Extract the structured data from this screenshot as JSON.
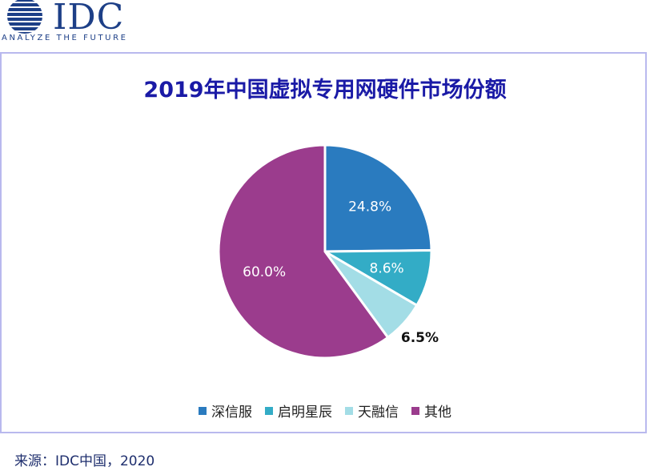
{
  "brand": {
    "name": "IDC",
    "tagline": "ANALYZE THE FUTURE",
    "color": "#1d3f87"
  },
  "source_text": "来源：IDC中国，2020",
  "chart_data": {
    "type": "pie",
    "title": "2019年中国虚拟专用网硬件市场份额",
    "slices": [
      {
        "label": "深信服",
        "value": 24.8,
        "display": "24.8%",
        "color": "#2a7bbf"
      },
      {
        "label": "启明星辰",
        "value": 8.6,
        "display": "8.6%",
        "color": "#33acc6"
      },
      {
        "label": "天融信",
        "value": 6.5,
        "display": "6.5%",
        "color": "#a3dde6"
      },
      {
        "label": "其他",
        "value": 60.0,
        "display": "60.0%",
        "color": "#9b3c8d"
      }
    ],
    "legend_position": "bottom"
  }
}
